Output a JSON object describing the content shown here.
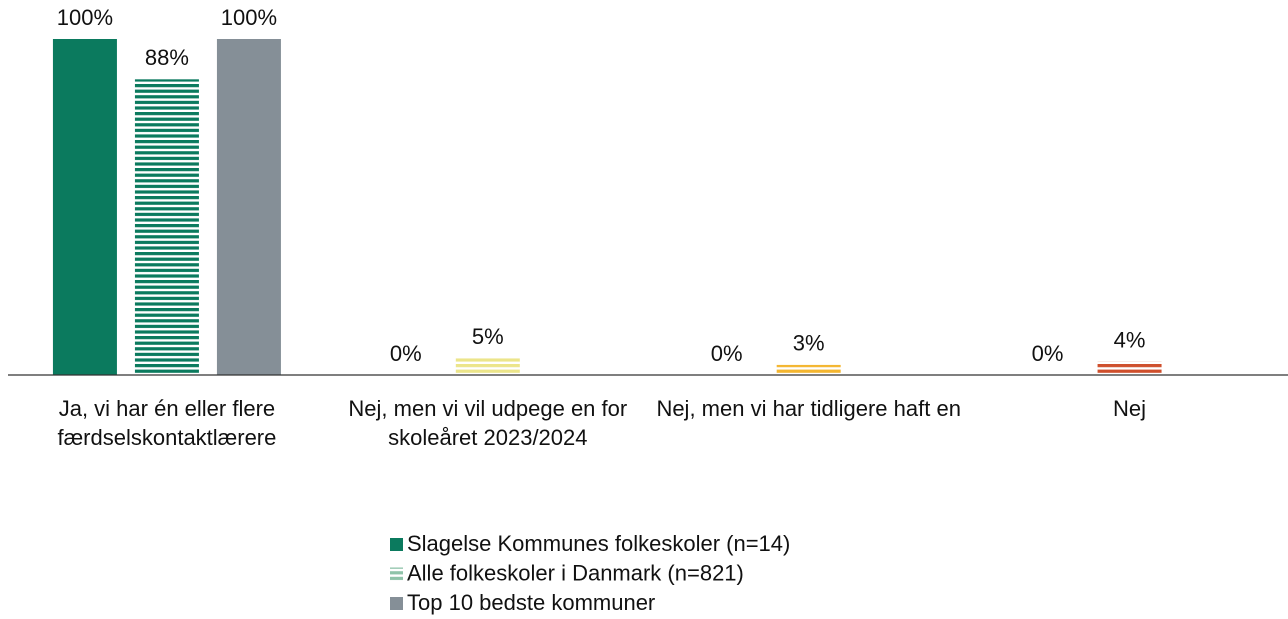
{
  "chart_data": {
    "type": "bar",
    "categories": [
      "Ja, vi har én eller flere færdselskontaktlærere",
      "Nej, men vi vil udpege en for skoleåret 2023/2024",
      "Nej, men vi har tidligere haft en",
      "Nej"
    ],
    "series": [
      {
        "name": "Slagelse Kommunes folkeskoler (n=14)",
        "color": "#0b7a5e",
        "pattern": "solid",
        "values": [
          100,
          0,
          0,
          0
        ],
        "value_labels": [
          "100%",
          "0%",
          "0%",
          "0%"
        ]
      },
      {
        "name": "Alle folkeskoler i Danmark (n=821)",
        "color": "#0b7a5e",
        "pattern": "horizontal-stripes",
        "colors": [
          "#0b7a5e",
          "#ece58a",
          "#f4b630",
          "#cf4f2c"
        ],
        "values": [
          88,
          5,
          3,
          4
        ],
        "value_labels": [
          "88%",
          "5%",
          "3%",
          "4%"
        ]
      },
      {
        "name": "Top 10 bedste kommuner",
        "color": "#858f97",
        "pattern": "solid",
        "values": [
          100,
          null,
          null,
          null
        ],
        "value_labels": [
          "100%",
          null,
          null,
          null
        ]
      }
    ],
    "ylim": [
      0,
      100
    ],
    "legend": "bottom"
  }
}
